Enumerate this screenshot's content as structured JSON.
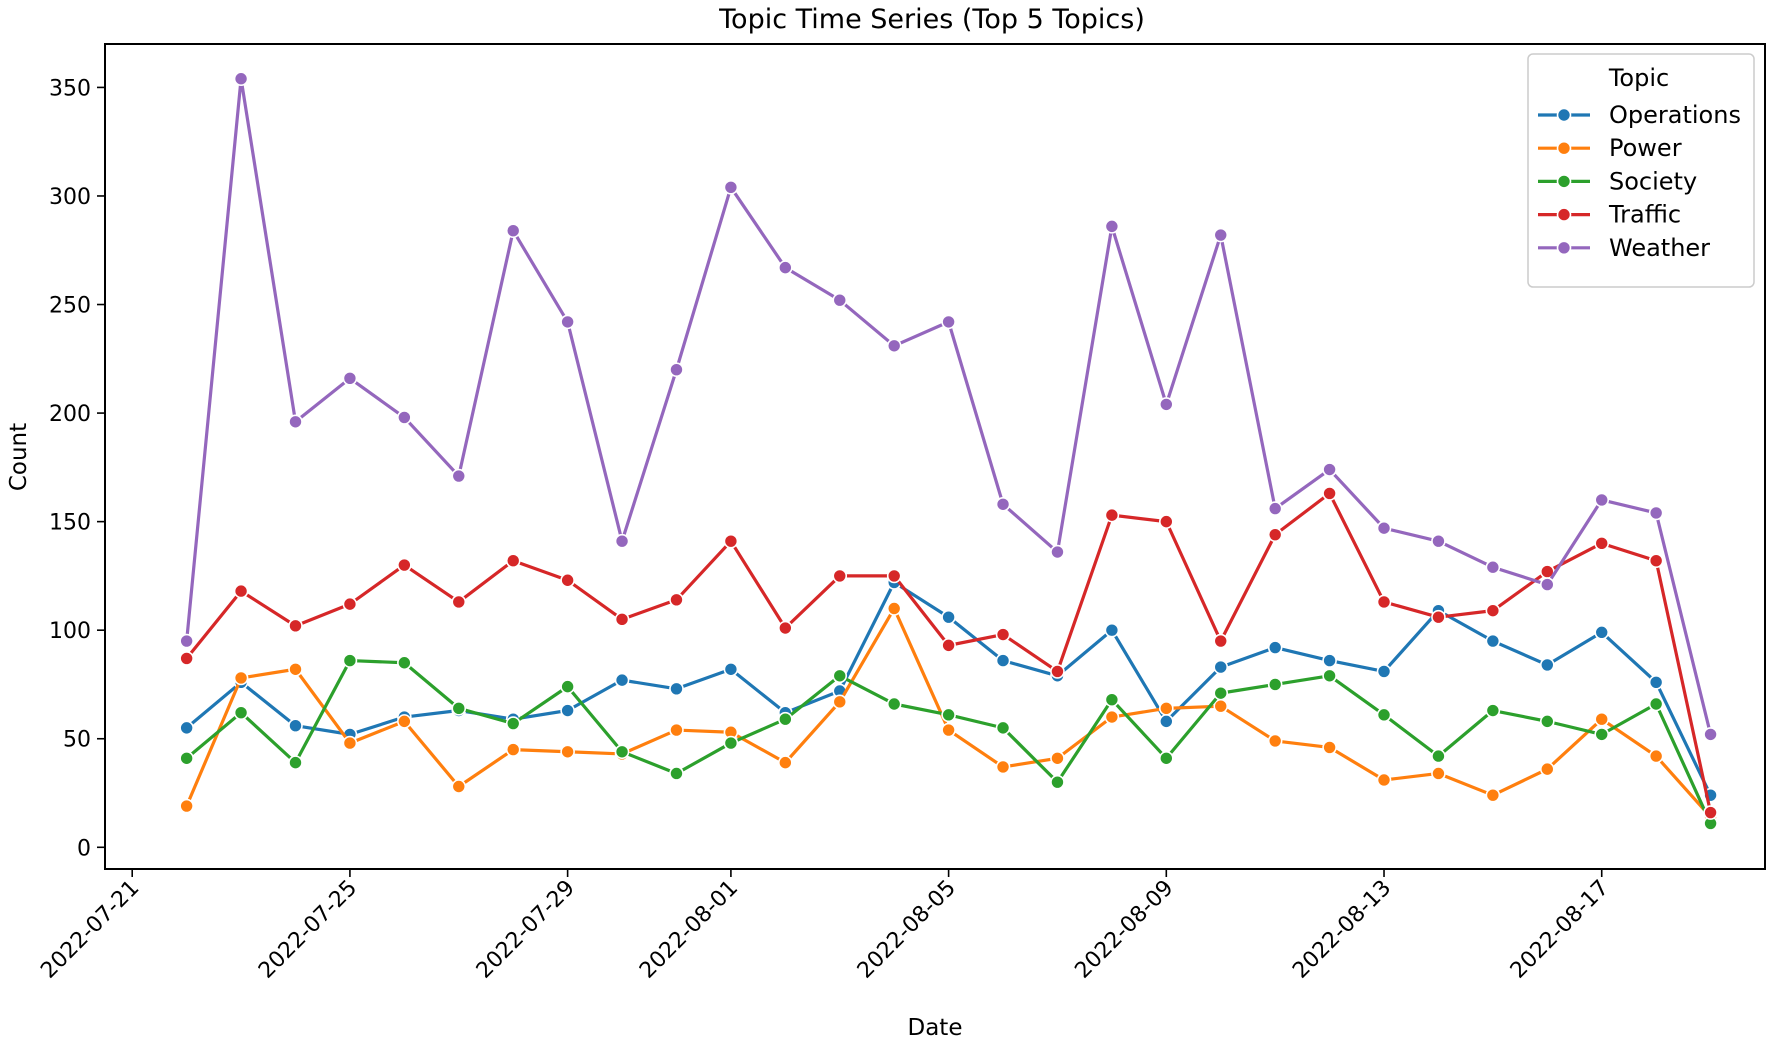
{
  "chart_data": {
    "type": "line",
    "title": "Topic Time Series (Top 5 Topics)",
    "xlabel": "Date",
    "ylabel": "Count",
    "ylim": [
      -10,
      370
    ],
    "xlim": [
      "2022-07-20T12:00",
      "2022-08-20T00:00"
    ],
    "x": [
      "2022-07-22",
      "2022-07-23",
      "2022-07-24",
      "2022-07-25",
      "2022-07-26",
      "2022-07-27",
      "2022-07-28",
      "2022-07-29",
      "2022-07-30",
      "2022-07-31",
      "2022-08-01",
      "2022-08-02",
      "2022-08-03",
      "2022-08-04",
      "2022-08-05",
      "2022-08-06",
      "2022-08-07",
      "2022-08-08",
      "2022-08-09",
      "2022-08-10",
      "2022-08-11",
      "2022-08-12",
      "2022-08-13",
      "2022-08-14",
      "2022-08-15",
      "2022-08-16",
      "2022-08-17",
      "2022-08-18",
      "2022-08-19"
    ],
    "x_ticks": [
      "2022-07-21",
      "2022-07-25",
      "2022-07-29",
      "2022-08-01",
      "2022-08-05",
      "2022-08-09",
      "2022-08-13",
      "2022-08-17"
    ],
    "y_ticks": [
      0,
      50,
      100,
      150,
      200,
      250,
      300,
      350
    ],
    "grid": false,
    "legend": {
      "title": "Topic",
      "placement": "top-right"
    },
    "series": [
      {
        "name": "Operations",
        "color": "#1f77b4",
        "values": [
          55,
          76,
          56,
          52,
          60,
          63,
          59,
          63,
          77,
          73,
          82,
          62,
          72,
          122,
          106,
          86,
          79,
          100,
          58,
          83,
          92,
          86,
          81,
          109,
          95,
          84,
          99,
          76,
          24
        ]
      },
      {
        "name": "Power",
        "color": "#ff7f0e",
        "values": [
          19,
          78,
          82,
          48,
          58,
          28,
          45,
          44,
          43,
          54,
          53,
          39,
          67,
          110,
          54,
          37,
          41,
          60,
          64,
          65,
          49,
          46,
          31,
          34,
          24,
          36,
          59,
          42,
          14
        ]
      },
      {
        "name": "Society",
        "color": "#2ca02c",
        "values": [
          41,
          62,
          39,
          86,
          85,
          64,
          57,
          74,
          44,
          34,
          48,
          59,
          79,
          66,
          61,
          55,
          30,
          68,
          41,
          71,
          75,
          79,
          61,
          42,
          63,
          58,
          52,
          66,
          11
        ]
      },
      {
        "name": "Traffic",
        "color": "#d62728",
        "values": [
          87,
          118,
          102,
          112,
          130,
          113,
          132,
          123,
          105,
          114,
          141,
          101,
          125,
          125,
          93,
          98,
          81,
          153,
          150,
          95,
          144,
          163,
          113,
          106,
          109,
          127,
          140,
          132,
          16
        ]
      },
      {
        "name": "Weather",
        "color": "#9467bd",
        "values": [
          95,
          354,
          196,
          216,
          198,
          171,
          284,
          242,
          141,
          220,
          304,
          267,
          252,
          231,
          242,
          158,
          136,
          286,
          204,
          282,
          156,
          174,
          147,
          141,
          129,
          121,
          160,
          154,
          52
        ]
      }
    ]
  }
}
